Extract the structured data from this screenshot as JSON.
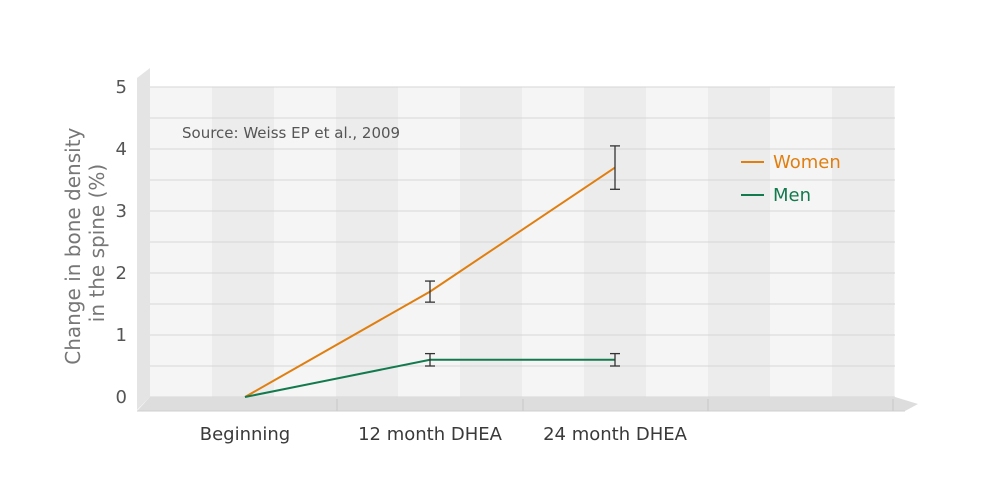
{
  "chart_data": {
    "type": "line",
    "source_note": "Source: Weiss EP et al., 2009",
    "ylabel_lines": [
      "Change in bone density",
      "in the spine (%)"
    ],
    "categories": [
      "Beginning",
      "12 month DHEA",
      "24 month DHEA"
    ],
    "ylim": [
      0,
      5
    ],
    "yticks": [
      "0",
      "1",
      "2",
      "3",
      "4",
      "5"
    ],
    "grid": true,
    "legend_position": "top-right",
    "series": [
      {
        "name": "Women",
        "color": "#E07F10",
        "values": [
          0,
          1.7,
          3.7
        ],
        "errors": [
          0,
          0.17,
          0.35
        ]
      },
      {
        "name": "Men",
        "color": "#137A4E",
        "values": [
          0,
          0.6,
          0.6
        ],
        "errors": [
          0,
          0.1,
          0.1
        ]
      }
    ]
  }
}
